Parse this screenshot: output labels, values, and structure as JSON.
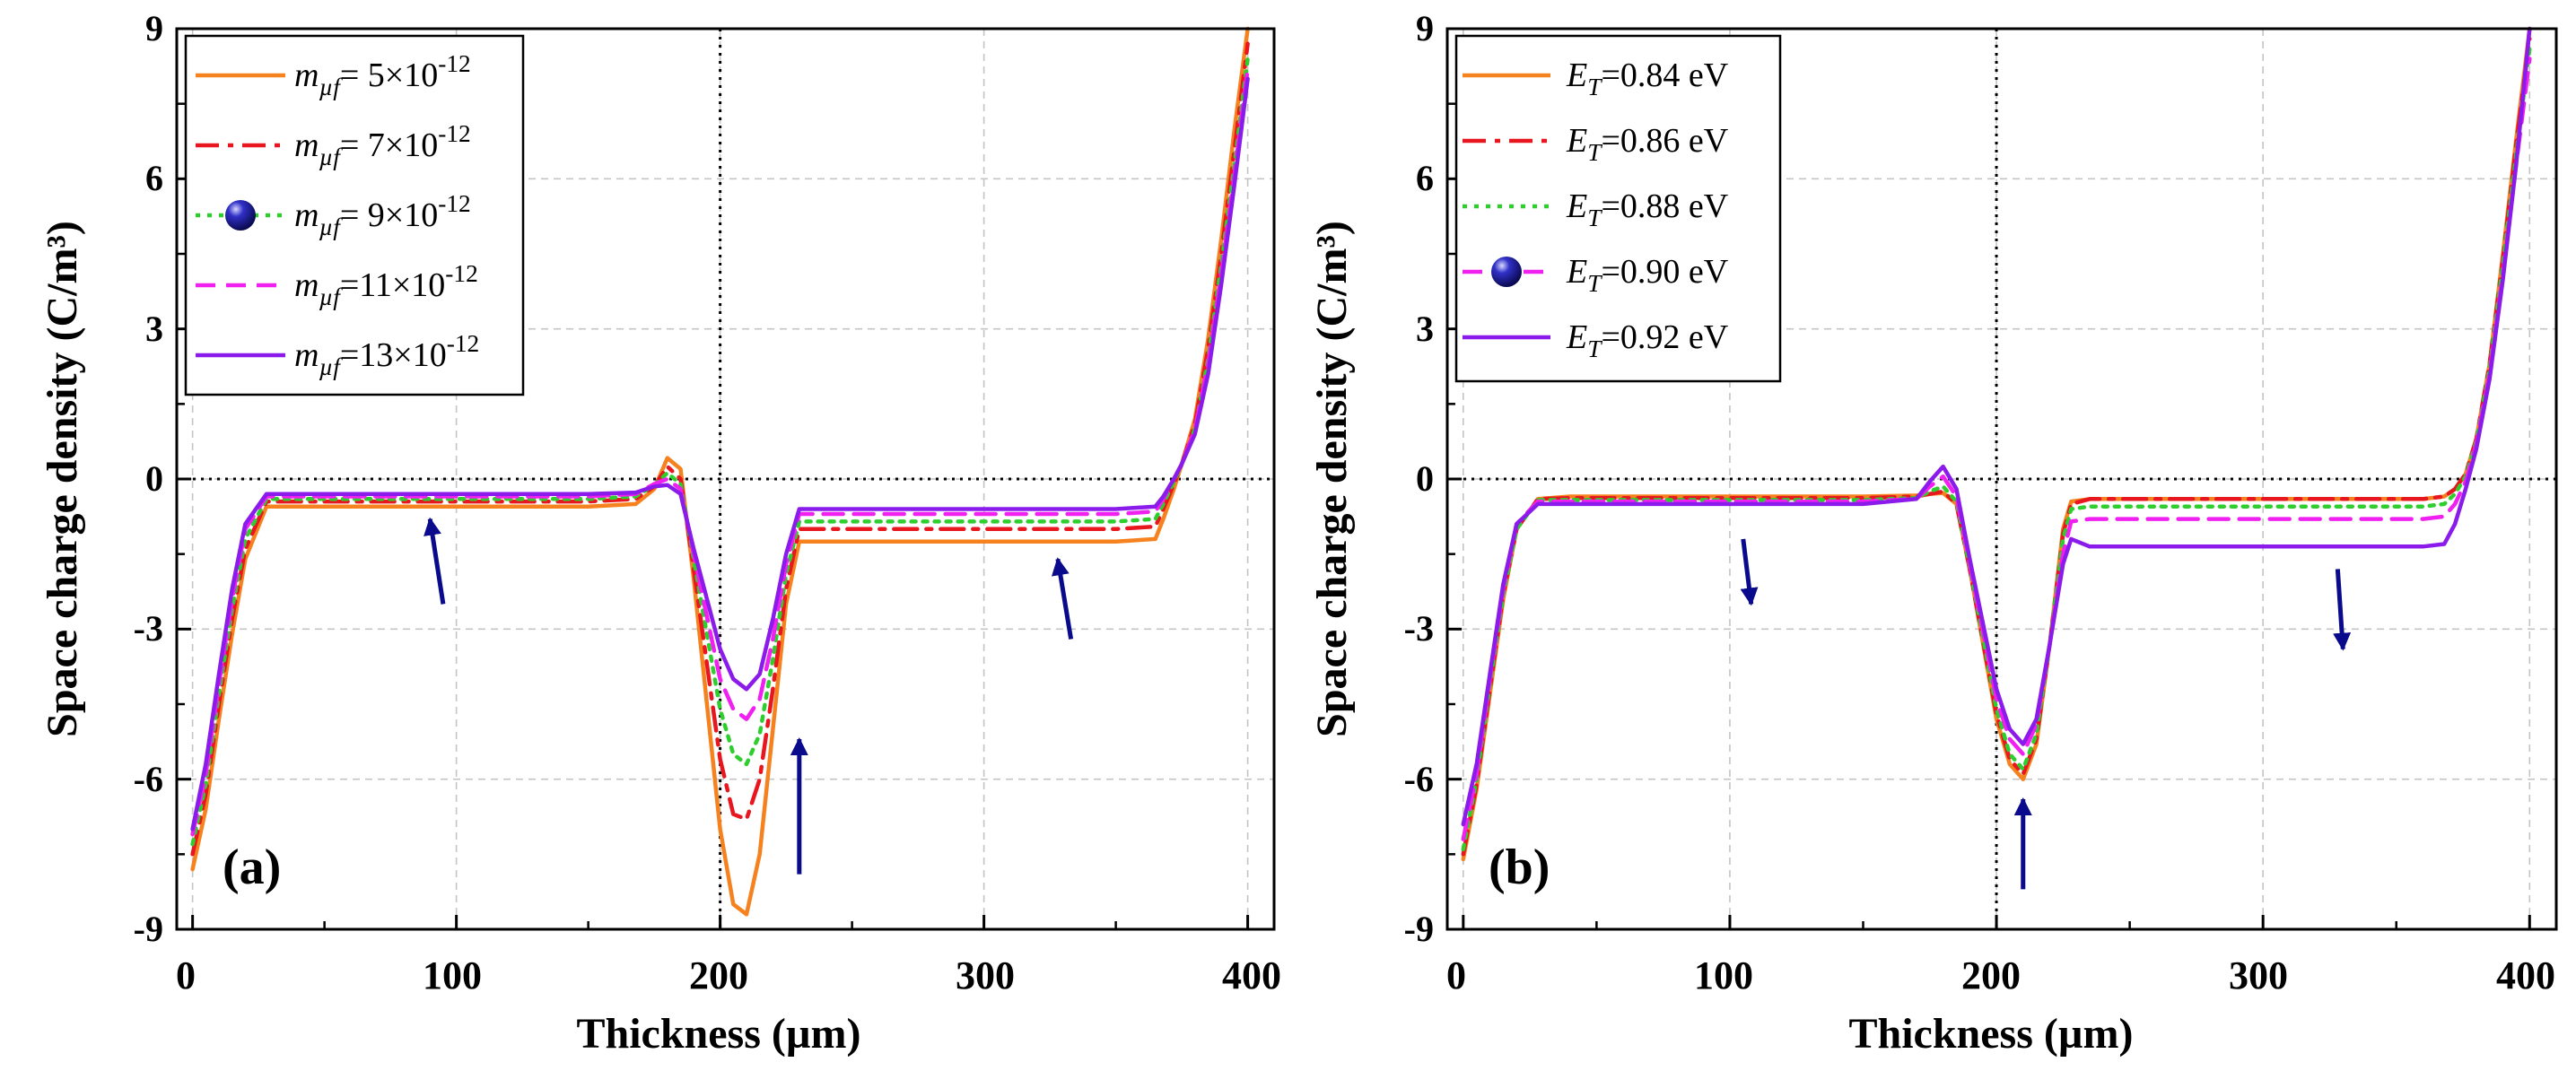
{
  "figure": {
    "background": "#ffffff"
  },
  "chart_data": [
    {
      "type": "line",
      "panel_label": "(a)",
      "xlabel": "Thickness (µm)",
      "ylabel": "Space charge density (C/m³)",
      "xlim": [
        -6,
        410
      ],
      "ylim": [
        -9,
        9
      ],
      "xticks": [
        0,
        100,
        200,
        300,
        400
      ],
      "xtick_labels": [
        "0",
        "100",
        "200",
        "300",
        "400"
      ],
      "yticks": [
        -9,
        -6,
        -3,
        0,
        3,
        6,
        9
      ],
      "ytick_labels": [
        "-9",
        "-6",
        "-3",
        "0",
        "3",
        "6",
        "9"
      ],
      "grid": true,
      "reference_lines": {
        "x": 200,
        "y": 0
      },
      "legend_position": "top-left",
      "series": [
        {
          "name": "m_µf = 5×10^-12",
          "legend_var": "m",
          "legend_sub": "µf",
          "legend_mid": "= 5×10",
          "legend_sup": "-12",
          "color": "#f5821f",
          "dash": "solid",
          "marker": false,
          "x": [
            0,
            5,
            10,
            15,
            20,
            28,
            40,
            100,
            150,
            168,
            175,
            180,
            185,
            190,
            200,
            205,
            210,
            215,
            220,
            225,
            230,
            250,
            300,
            350,
            365,
            368,
            372,
            375,
            380,
            385,
            390,
            395,
            400
          ],
          "y": [
            -7.8,
            -6.6,
            -4.8,
            -3.1,
            -1.6,
            -0.55,
            -0.55,
            -0.55,
            -0.55,
            -0.5,
            -0.2,
            0.42,
            0.2,
            -2.0,
            -7.0,
            -8.5,
            -8.7,
            -7.5,
            -5.0,
            -2.5,
            -1.25,
            -1.25,
            -1.25,
            -1.25,
            -1.2,
            -0.8,
            -0.2,
            0.3,
            1.2,
            2.8,
            4.8,
            7.0,
            9.0
          ]
        },
        {
          "name": "m_µf = 7×10^-12",
          "legend_var": "m",
          "legend_sub": "µf",
          "legend_mid": "= 7×10",
          "legend_sup": "-12",
          "color": "#e8161e",
          "dash": "dashdot",
          "marker": false,
          "x": [
            0,
            5,
            10,
            15,
            20,
            28,
            40,
            100,
            150,
            168,
            175,
            180,
            185,
            190,
            200,
            205,
            210,
            215,
            220,
            225,
            230,
            250,
            300,
            350,
            365,
            368,
            372,
            375,
            380,
            385,
            390,
            395,
            400
          ],
          "y": [
            -7.5,
            -6.3,
            -4.5,
            -2.8,
            -1.4,
            -0.45,
            -0.45,
            -0.45,
            -0.45,
            -0.4,
            -0.15,
            0.25,
            0.0,
            -1.8,
            -5.6,
            -6.7,
            -6.8,
            -6.0,
            -4.2,
            -2.2,
            -1.0,
            -1.0,
            -1.0,
            -1.0,
            -0.95,
            -0.6,
            -0.1,
            0.3,
            1.1,
            2.6,
            4.5,
            6.6,
            8.7
          ]
        },
        {
          "name": "m_µf = 9×10^-12",
          "legend_var": "m",
          "legend_sub": "µf",
          "legend_mid": "= 9×10",
          "legend_sup": "-12",
          "color": "#2fce2f",
          "dash": "dotted",
          "marker": true,
          "x": [
            0,
            5,
            10,
            15,
            20,
            28,
            40,
            100,
            150,
            168,
            175,
            180,
            185,
            190,
            200,
            205,
            210,
            215,
            220,
            225,
            230,
            250,
            300,
            350,
            365,
            368,
            372,
            375,
            380,
            385,
            390,
            395,
            400
          ],
          "y": [
            -7.3,
            -6.1,
            -4.3,
            -2.6,
            -1.2,
            -0.4,
            -0.4,
            -0.4,
            -0.4,
            -0.35,
            -0.12,
            0.12,
            -0.1,
            -1.6,
            -4.6,
            -5.5,
            -5.7,
            -5.1,
            -3.6,
            -1.9,
            -0.85,
            -0.85,
            -0.85,
            -0.85,
            -0.8,
            -0.5,
            -0.05,
            0.3,
            1.0,
            2.4,
            4.3,
            6.3,
            8.4
          ]
        },
        {
          "name": "m_µf = 11×10^-12",
          "legend_var": "m",
          "legend_sub": "µf",
          "legend_mid": "=11×10",
          "legend_sup": "-12",
          "color": "#f020f0",
          "dash": "dashed",
          "marker": false,
          "x": [
            0,
            5,
            10,
            15,
            20,
            28,
            40,
            100,
            150,
            168,
            175,
            180,
            185,
            190,
            200,
            205,
            210,
            215,
            220,
            225,
            230,
            250,
            300,
            350,
            365,
            368,
            372,
            375,
            380,
            385,
            390,
            395,
            400
          ],
          "y": [
            -7.1,
            -5.9,
            -4.1,
            -2.4,
            -1.0,
            -0.35,
            -0.35,
            -0.35,
            -0.35,
            -0.3,
            -0.1,
            0.0,
            -0.2,
            -1.5,
            -4.0,
            -4.6,
            -4.8,
            -4.4,
            -3.2,
            -1.7,
            -0.7,
            -0.7,
            -0.7,
            -0.7,
            -0.65,
            -0.4,
            0.0,
            0.3,
            1.0,
            2.3,
            4.1,
            6.1,
            8.2
          ]
        },
        {
          "name": "m_µf = 13×10^-12",
          "legend_var": "m",
          "legend_sub": "µf",
          "legend_mid": "=13×10",
          "legend_sup": "-12",
          "color": "#8b1bea",
          "dash": "solid",
          "marker": false,
          "x": [
            0,
            5,
            10,
            15,
            20,
            28,
            40,
            100,
            150,
            168,
            175,
            180,
            185,
            190,
            200,
            205,
            210,
            215,
            220,
            225,
            230,
            250,
            300,
            350,
            365,
            368,
            372,
            375,
            380,
            385,
            390,
            395,
            400
          ],
          "y": [
            -7.0,
            -5.7,
            -3.9,
            -2.2,
            -0.9,
            -0.3,
            -0.3,
            -0.3,
            -0.3,
            -0.27,
            -0.15,
            -0.12,
            -0.3,
            -1.4,
            -3.4,
            -4.0,
            -4.2,
            -3.9,
            -2.8,
            -1.5,
            -0.6,
            -0.6,
            -0.6,
            -0.6,
            -0.55,
            -0.35,
            0.0,
            0.3,
            0.9,
            2.1,
            3.9,
            5.9,
            8.0
          ]
        }
      ],
      "arrows": [
        {
          "from": [
            95,
            -2.5
          ],
          "to": [
            90,
            -0.8
          ]
        },
        {
          "from": [
            230,
            -7.9
          ],
          "to": [
            230,
            -5.2
          ]
        },
        {
          "from": [
            333,
            -3.2
          ],
          "to": [
            328,
            -1.6
          ]
        }
      ]
    },
    {
      "type": "line",
      "panel_label": "(b)",
      "xlabel": "Thickness (µm)",
      "ylabel": "Space charge density (C/m³)",
      "xlim": [
        -6,
        410
      ],
      "ylim": [
        -9,
        9
      ],
      "xticks": [
        0,
        100,
        200,
        300,
        400
      ],
      "xtick_labels": [
        "0",
        "100",
        "200",
        "300",
        "400"
      ],
      "yticks": [
        -9,
        -6,
        -3,
        0,
        3,
        6,
        9
      ],
      "ytick_labels": [
        "-9",
        "-6",
        "-3",
        "0",
        "3",
        "6",
        "9"
      ],
      "grid": true,
      "reference_lines": {
        "x": 200,
        "y": 0
      },
      "legend_position": "top-left",
      "series": [
        {
          "name": "E_T=0.84 eV",
          "legend_var": "E",
          "legend_sub": "T",
          "legend_mid": "=0.84 eV",
          "legend_sup": "",
          "color": "#f5821f",
          "dash": "solid",
          "marker": false,
          "x": [
            0,
            5,
            10,
            15,
            20,
            28,
            40,
            100,
            150,
            170,
            175,
            180,
            185,
            190,
            200,
            205,
            210,
            215,
            220,
            225,
            228,
            235,
            300,
            360,
            368,
            372,
            376,
            380,
            385,
            390,
            395,
            400
          ],
          "y": [
            -7.6,
            -6.2,
            -4.3,
            -2.4,
            -1.0,
            -0.4,
            -0.35,
            -0.35,
            -0.35,
            -0.33,
            -0.3,
            -0.28,
            -0.5,
            -1.8,
            -4.8,
            -5.7,
            -6.0,
            -5.3,
            -3.3,
            -1.0,
            -0.45,
            -0.4,
            -0.4,
            -0.4,
            -0.35,
            -0.2,
            0.1,
            0.8,
            2.3,
            4.5,
            6.8,
            9.0
          ]
        },
        {
          "name": "E_T=0.86 eV",
          "legend_var": "E",
          "legend_sub": "T",
          "legend_mid": "=0.86 eV",
          "legend_sup": "",
          "color": "#e8161e",
          "dash": "dashdot",
          "marker": false,
          "x": [
            0,
            5,
            10,
            15,
            20,
            28,
            40,
            100,
            150,
            170,
            175,
            180,
            185,
            190,
            200,
            205,
            210,
            215,
            220,
            225,
            228,
            235,
            300,
            360,
            368,
            372,
            376,
            380,
            385,
            390,
            395,
            400
          ],
          "y": [
            -7.5,
            -6.1,
            -4.2,
            -2.3,
            -1.0,
            -0.4,
            -0.38,
            -0.38,
            -0.38,
            -0.35,
            -0.3,
            -0.25,
            -0.5,
            -1.8,
            -4.7,
            -5.6,
            -5.9,
            -5.2,
            -3.3,
            -1.1,
            -0.5,
            -0.4,
            -0.4,
            -0.4,
            -0.35,
            -0.2,
            0.1,
            0.8,
            2.3,
            4.4,
            6.7,
            8.8
          ]
        },
        {
          "name": "E_T=0.88 eV",
          "legend_var": "E",
          "legend_sub": "T",
          "legend_mid": "=0.88 eV",
          "legend_sup": "",
          "color": "#2fce2f",
          "dash": "dotted",
          "marker": false,
          "x": [
            0,
            5,
            10,
            15,
            20,
            28,
            40,
            100,
            150,
            170,
            175,
            180,
            185,
            190,
            200,
            205,
            210,
            215,
            220,
            225,
            228,
            235,
            300,
            360,
            368,
            372,
            376,
            380,
            385,
            390,
            395,
            400
          ],
          "y": [
            -7.4,
            -6.0,
            -4.1,
            -2.3,
            -1.0,
            -0.42,
            -0.42,
            -0.42,
            -0.42,
            -0.38,
            -0.25,
            -0.15,
            -0.45,
            -1.75,
            -4.6,
            -5.5,
            -5.8,
            -5.1,
            -3.3,
            -1.2,
            -0.6,
            -0.55,
            -0.55,
            -0.55,
            -0.5,
            -0.3,
            0.05,
            0.75,
            2.2,
            4.3,
            6.5,
            8.6
          ]
        },
        {
          "name": "E_T=0.90 eV",
          "legend_var": "E",
          "legend_sub": "T",
          "legend_mid": "=0.90 eV",
          "legend_sup": "",
          "color": "#f020f0",
          "dash": "dashed",
          "marker": true,
          "x": [
            0,
            5,
            10,
            15,
            20,
            28,
            40,
            100,
            150,
            170,
            175,
            180,
            185,
            190,
            200,
            205,
            210,
            215,
            220,
            225,
            228,
            235,
            300,
            360,
            368,
            372,
            376,
            380,
            385,
            390,
            395,
            400
          ],
          "y": [
            -7.2,
            -5.9,
            -4.0,
            -2.2,
            -0.9,
            -0.45,
            -0.45,
            -0.45,
            -0.45,
            -0.4,
            -0.15,
            0.05,
            -0.35,
            -1.7,
            -4.4,
            -5.2,
            -5.5,
            -4.9,
            -3.3,
            -1.5,
            -0.85,
            -0.8,
            -0.8,
            -0.8,
            -0.75,
            -0.5,
            -0.05,
            0.7,
            2.1,
            4.1,
            6.3,
            8.4
          ]
        },
        {
          "name": "E_T=0.92 eV",
          "legend_var": "E",
          "legend_sub": "T",
          "legend_mid": "=0.92 eV",
          "legend_sup": "",
          "color": "#8b1bea",
          "dash": "solid",
          "marker": false,
          "x": [
            0,
            5,
            10,
            15,
            20,
            28,
            40,
            100,
            150,
            170,
            175,
            180,
            185,
            190,
            200,
            205,
            210,
            215,
            220,
            225,
            228,
            235,
            300,
            360,
            368,
            372,
            376,
            380,
            385,
            390,
            395,
            400
          ],
          "y": [
            -6.9,
            -5.7,
            -3.9,
            -2.1,
            -0.9,
            -0.5,
            -0.5,
            -0.5,
            -0.5,
            -0.4,
            -0.05,
            0.25,
            -0.2,
            -1.6,
            -4.2,
            -5.0,
            -5.3,
            -4.8,
            -3.3,
            -1.7,
            -1.2,
            -1.35,
            -1.35,
            -1.35,
            -1.3,
            -0.9,
            -0.2,
            0.6,
            2.0,
            4.0,
            6.3,
            9.0
          ]
        }
      ],
      "arrows": [
        {
          "from": [
            105,
            -1.2
          ],
          "to": [
            108,
            -2.5
          ]
        },
        {
          "from": [
            210,
            -8.2
          ],
          "to": [
            210,
            -6.4
          ]
        },
        {
          "from": [
            328,
            -1.8
          ],
          "to": [
            330,
            -3.4
          ]
        }
      ]
    }
  ]
}
